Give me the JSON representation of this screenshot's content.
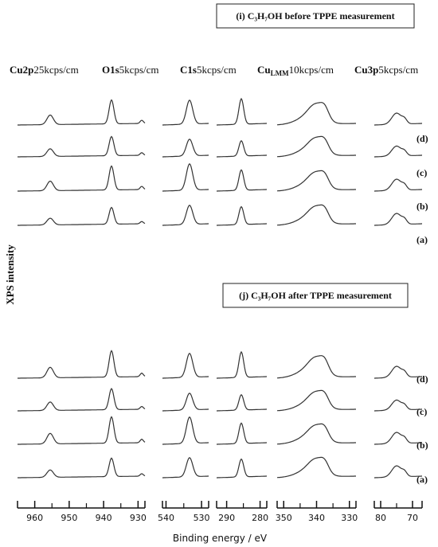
{
  "chart_data": {
    "type": "xps-stack",
    "panels": [
      {
        "title": "(i) C₃H₇OH before TPPE measurement",
        "row_labels": [
          "(d)",
          "(c)",
          "(b)",
          "(a)"
        ]
      },
      {
        "title": "(j) C₃H₇OH after TPPE measurement",
        "row_labels": [
          "(d)",
          "(c)",
          "(b)",
          "(a)"
        ]
      }
    ],
    "column_headers": [
      {
        "element": "Cu2p",
        "scale": "25kcps/cm"
      },
      {
        "element": "O1s",
        "scale": "5kcps/cm"
      },
      {
        "element": "C1s",
        "scale": "5kcps/cm"
      },
      {
        "element": "Cu",
        "subscript": "LMM",
        "scale": "10kcps/cm"
      },
      {
        "element": "Cu3p",
        "scale": "5kcps/cm"
      }
    ],
    "y_label": "XPS intensity",
    "x_label": "Binding energy / eV",
    "axes": [
      {
        "xlim": [
          965,
          928
        ],
        "xticks": [
          960,
          950,
          940,
          930
        ],
        "minor_ticks": [
          955,
          945,
          935
        ]
      },
      {
        "xlim": [
          541,
          528
        ],
        "xticks": [
          540,
          530
        ],
        "minor_ticks": [
          535
        ]
      },
      {
        "xlim": [
          293,
          278
        ],
        "xticks": [
          290,
          280
        ],
        "minor_ticks": [
          285
        ]
      },
      {
        "xlim": [
          352,
          328
        ],
        "xticks": [
          350,
          340,
          330
        ],
        "minor_ticks": [
          345,
          335
        ]
      },
      {
        "xlim": [
          82,
          67
        ],
        "xticks": [
          80,
          70
        ],
        "minor_ticks": [
          75
        ]
      }
    ]
  }
}
